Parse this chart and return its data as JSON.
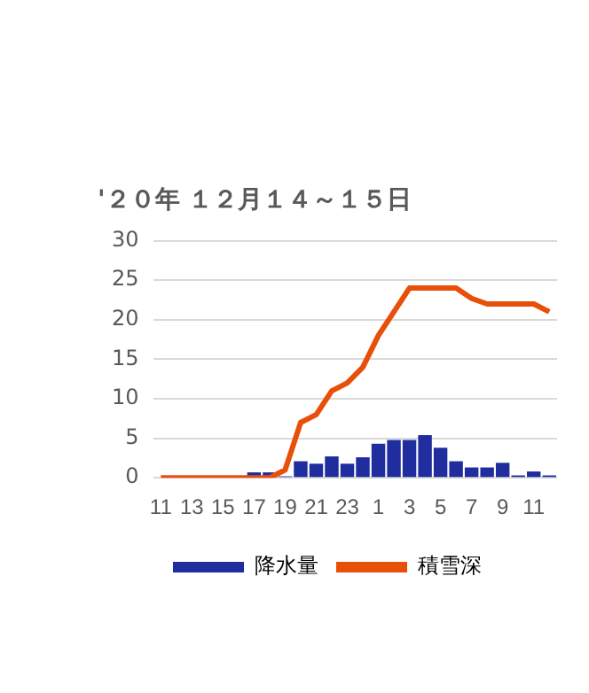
{
  "chart_data": {
    "type": "bar",
    "title": "'２０年 １２月１４～１５日",
    "categories": [
      "11",
      null,
      "13",
      null,
      "15",
      null,
      "17",
      null,
      "19",
      null,
      "21",
      null,
      "23",
      null,
      "1",
      null,
      "3",
      null,
      "5",
      null,
      "7",
      null,
      "9",
      null,
      "11",
      null
    ],
    "series": [
      {
        "name": "降水量",
        "color": "#1f2d9e",
        "values": [
          0,
          0,
          0,
          0,
          0,
          0,
          0.7,
          0.7,
          0.2,
          2.1,
          1.8,
          2.7,
          1.8,
          2.6,
          4.3,
          4.8,
          4.8,
          5.4,
          3.8,
          2.1,
          1.3,
          1.3,
          1.9,
          0.3,
          0.8,
          0.3
        ]
      },
      {
        "name": "積雪深",
        "type": "line",
        "color": "#e8500a",
        "values": [
          0,
          0,
          0,
          0,
          0,
          0,
          0,
          0,
          1,
          7,
          8,
          11,
          12,
          14,
          18,
          21,
          24,
          24,
          24,
          24,
          22.7,
          22,
          22,
          22,
          22,
          21
        ]
      }
    ],
    "ylim": [
      0,
      30
    ],
    "yticks": [
      0,
      5,
      10,
      15,
      20,
      25,
      30
    ],
    "grid": "y",
    "legend": "bottom"
  }
}
